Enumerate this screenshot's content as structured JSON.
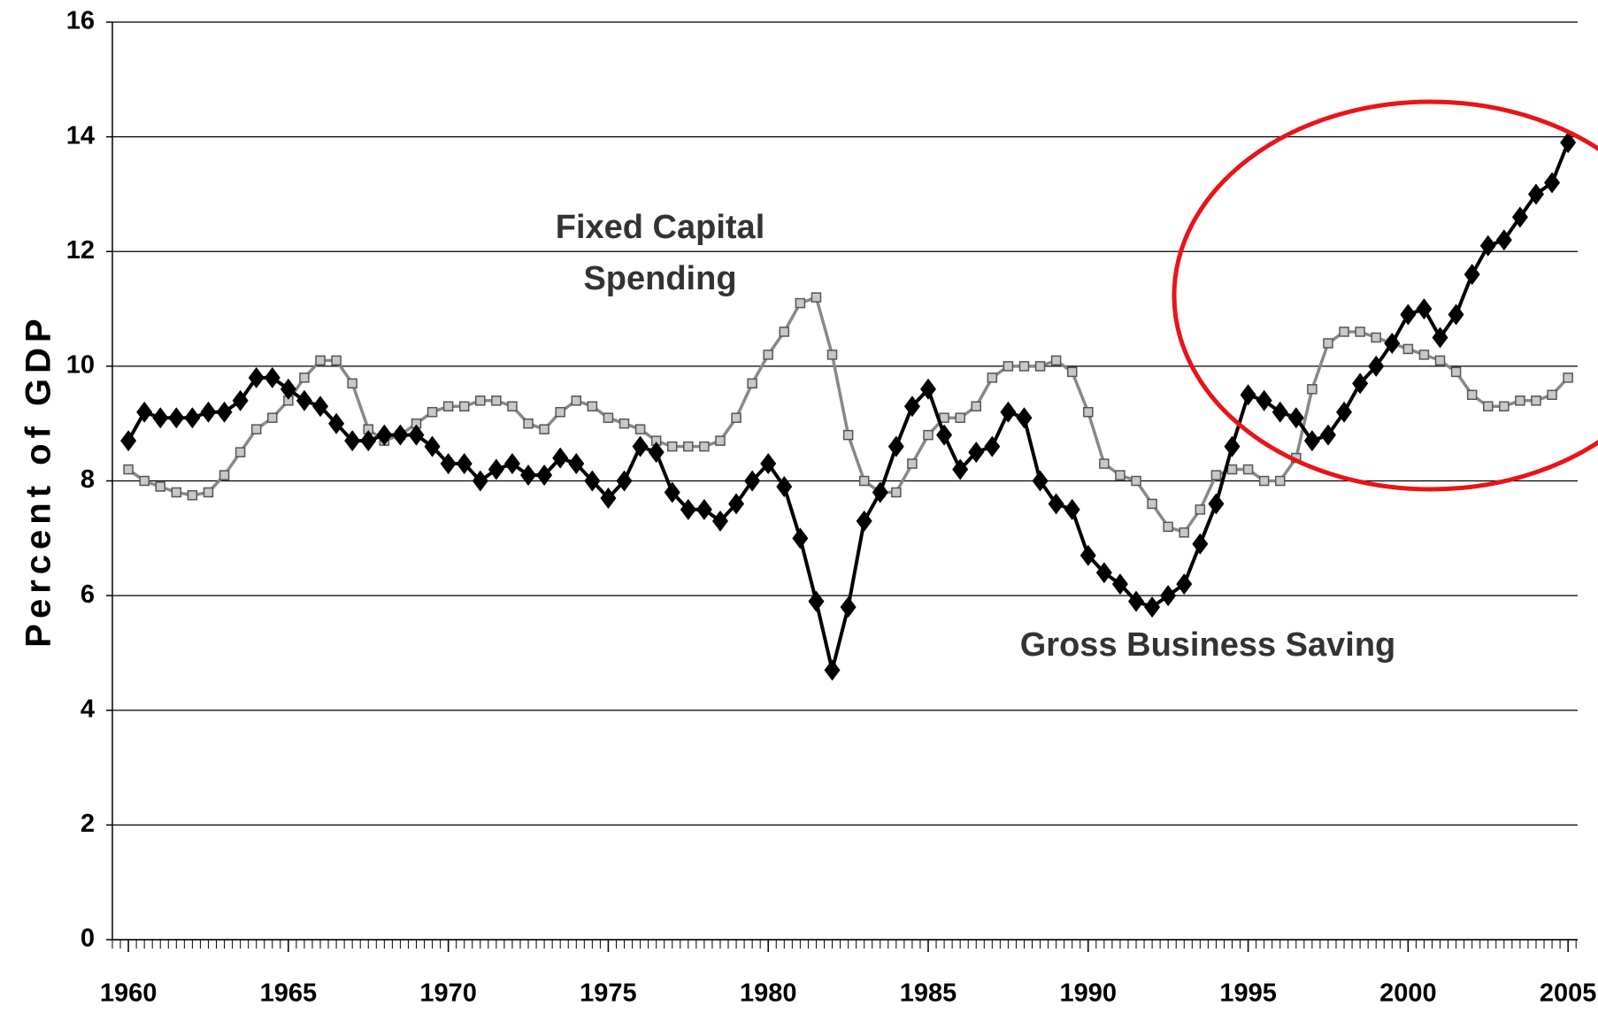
{
  "chart_data": {
    "type": "line",
    "ylabel": "Percent of GDP",
    "annotations": [
      "Fixed Capital",
      "Spending",
      "Gross Business Saving"
    ],
    "x": [
      1960,
      1960.5,
      1961,
      1961.5,
      1962,
      1962.5,
      1963,
      1963.5,
      1964,
      1964.5,
      1965,
      1965.5,
      1966,
      1966.5,
      1967,
      1967.5,
      1968,
      1968.5,
      1969,
      1969.5,
      1970,
      1970.5,
      1971,
      1971.5,
      1972,
      1972.5,
      1973,
      1973.5,
      1974,
      1974.5,
      1975,
      1975.5,
      1976,
      1976.5,
      1977,
      1977.5,
      1978,
      1978.5,
      1979,
      1979.5,
      1980,
      1980.5,
      1981,
      1981.5,
      1982,
      1982.5,
      1983,
      1983.5,
      1984,
      1984.5,
      1985,
      1985.5,
      1986,
      1986.5,
      1987,
      1987.5,
      1988,
      1988.5,
      1989,
      1989.5,
      1990,
      1990.5,
      1991,
      1991.5,
      1992,
      1992.5,
      1993,
      1993.5,
      1994,
      1994.5,
      1995,
      1995.5,
      1996,
      1996.5,
      1997,
      1997.5,
      1998,
      1998.5,
      1999,
      1999.5,
      2000,
      2000.5,
      2001,
      2001.5,
      2002,
      2002.5,
      2003,
      2003.5,
      2004,
      2004.5,
      2005
    ],
    "series": [
      {
        "name": "Gross Business Saving",
        "color": "#000000",
        "marker": "diamond",
        "values": [
          8.7,
          9.2,
          9.1,
          9.1,
          9.1,
          9.2,
          9.2,
          9.4,
          9.8,
          9.8,
          9.6,
          9.4,
          9.3,
          9.0,
          8.7,
          8.7,
          8.8,
          8.8,
          8.8,
          8.6,
          8.3,
          8.3,
          8.0,
          8.2,
          8.3,
          8.1,
          8.1,
          8.4,
          8.3,
          8.0,
          7.7,
          8.0,
          8.6,
          8.5,
          7.8,
          7.5,
          7.5,
          7.3,
          7.6,
          8.0,
          8.3,
          7.9,
          7.0,
          5.9,
          4.7,
          5.8,
          7.3,
          7.8,
          8.6,
          9.3,
          9.6,
          8.8,
          8.2,
          8.5,
          8.6,
          9.2,
          9.1,
          8.0,
          7.6,
          7.5,
          6.7,
          6.4,
          6.2,
          5.9,
          5.8,
          6.0,
          6.2,
          6.9,
          7.6,
          8.6,
          9.5,
          9.4,
          9.2,
          9.1,
          8.7,
          8.8,
          9.2,
          9.7,
          10.0,
          10.4,
          10.9,
          11.0,
          10.5,
          10.9,
          11.6,
          12.1,
          12.2,
          12.6,
          13.0,
          13.2,
          13.9
        ]
      },
      {
        "name": "Fixed Capital Spending",
        "color": "#888888",
        "marker": "square",
        "values": [
          8.2,
          8.0,
          7.9,
          7.8,
          7.75,
          7.8,
          8.1,
          8.5,
          8.9,
          9.1,
          9.4,
          9.8,
          10.1,
          10.1,
          9.7,
          8.9,
          8.7,
          8.8,
          9.0,
          9.2,
          9.3,
          9.3,
          9.4,
          9.4,
          9.3,
          9.0,
          8.9,
          9.2,
          9.4,
          9.3,
          9.1,
          9.0,
          8.9,
          8.7,
          8.6,
          8.6,
          8.6,
          8.7,
          9.1,
          9.7,
          10.2,
          10.6,
          11.1,
          11.2,
          10.2,
          8.8,
          8.0,
          7.8,
          7.8,
          8.3,
          8.8,
          9.1,
          9.1,
          9.3,
          9.8,
          10.0,
          10.0,
          10.0,
          10.1,
          9.9,
          9.2,
          8.3,
          8.1,
          8.0,
          7.6,
          7.2,
          7.1,
          7.5,
          8.1,
          8.2,
          8.2,
          8.0,
          8.0,
          8.4,
          9.6,
          10.4,
          10.6,
          10.6,
          10.5,
          10.4,
          10.3,
          10.2,
          10.1,
          9.9,
          9.5,
          9.3,
          9.3,
          9.4,
          9.4,
          9.5,
          9.8
        ]
      }
    ],
    "xlim": [
      1959.5,
      2005.3
    ],
    "xticks": [
      1960,
      1965,
      1970,
      1975,
      1980,
      1985,
      1990,
      1995,
      2000,
      2005
    ],
    "ylim": [
      0,
      16
    ],
    "yticks": [
      0,
      2,
      4,
      6,
      8,
      10,
      12,
      14,
      16
    ],
    "grid": true
  }
}
